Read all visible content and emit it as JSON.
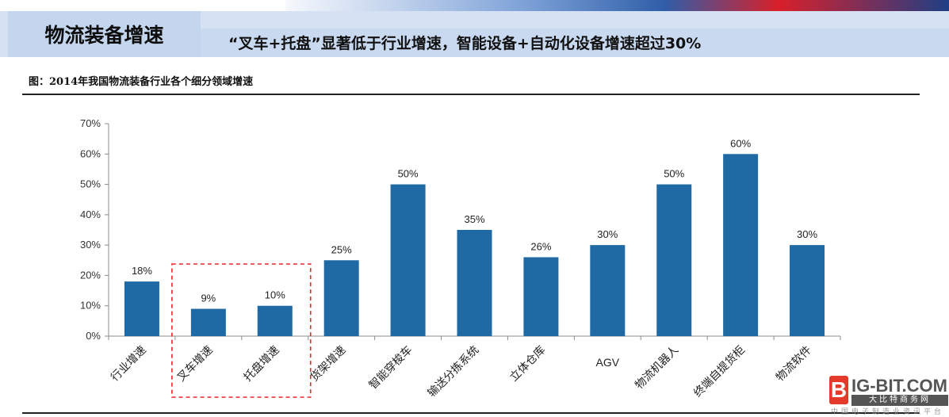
{
  "header": {
    "title": "物流装备增速",
    "subtitle": "“叉车+托盘”显著低于行业增速，智能设备+自动化设备增速超过30%"
  },
  "figure": {
    "caption": "图：2014年我国物流装备行业各个细分领域增速"
  },
  "chart_data": {
    "type": "bar",
    "categories": [
      "行业增速",
      "叉车增速",
      "托盘增速",
      "货架增速",
      "智能穿梭车",
      "输送分拣系统",
      "立体仓库",
      "AGV",
      "物流机器人",
      "终端自提货柜",
      "物流软件"
    ],
    "values": [
      18,
      9,
      10,
      25,
      50,
      35,
      26,
      30,
      50,
      60,
      30
    ],
    "data_labels": [
      "18%",
      "9%",
      "10%",
      "25%",
      "50%",
      "35%",
      "26%",
      "30%",
      "50%",
      "60%",
      "30%"
    ],
    "y_ticks": [
      "0%",
      "10%",
      "20%",
      "30%",
      "40%",
      "50%",
      "60%",
      "70%"
    ],
    "ylim": [
      0,
      70
    ],
    "unit": "%",
    "bar_color": "#1f6aa5",
    "highlight_box": {
      "categories": [
        "叉车增速",
        "托盘增速"
      ],
      "color": "#e8262a",
      "style": "dashed"
    },
    "grid": false,
    "legend": "none"
  },
  "watermark": {
    "logo_letter": "B",
    "brand": "IG-BIT.COM",
    "tagline": "大比特商务网",
    "line": "中国电子制造业资讯平台",
    "accent_color": "#e53a2a"
  }
}
